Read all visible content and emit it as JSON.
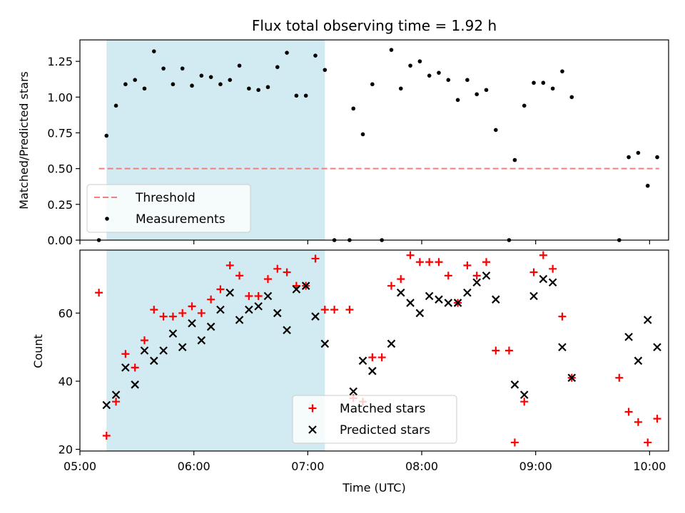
{
  "chart_data": [
    {
      "type": "scatter",
      "title": "Flux total observing time = 1.92 h",
      "xlabel": "",
      "ylabel": "Matched/Predicted stars",
      "xlim": [
        "05:00",
        "10:10"
      ],
      "ylim": [
        0,
        1.4
      ],
      "yticks": [
        "0.00",
        "0.25",
        "0.50",
        "0.75",
        "1.00",
        "1.25"
      ],
      "shaded_span": {
        "start": "05:14",
        "end": "07:09",
        "color": "#add8e6"
      },
      "threshold": {
        "name": "Threshold",
        "value": 0.5,
        "x_start": "05:10",
        "x_end": "10:05",
        "color": "#f08080",
        "style": "dashed"
      },
      "legend": {
        "placement": "lower-left",
        "entries": [
          "Threshold",
          "Measurements"
        ]
      },
      "series": [
        {
          "name": "Measurements",
          "color": "#000000",
          "marker": "dot",
          "points": [
            [
              "05:10",
              0.0
            ],
            [
              "05:14",
              0.73
            ],
            [
              "05:19",
              0.94
            ],
            [
              "05:24",
              1.09
            ],
            [
              "05:29",
              1.12
            ],
            [
              "05:34",
              1.06
            ],
            [
              "05:39",
              1.32
            ],
            [
              "05:44",
              1.2
            ],
            [
              "05:49",
              1.09
            ],
            [
              "05:54",
              1.2
            ],
            [
              "05:59",
              1.08
            ],
            [
              "06:04",
              1.15
            ],
            [
              "06:09",
              1.14
            ],
            [
              "06:14",
              1.09
            ],
            [
              "06:19",
              1.12
            ],
            [
              "06:24",
              1.22
            ],
            [
              "06:29",
              1.06
            ],
            [
              "06:34",
              1.05
            ],
            [
              "06:39",
              1.07
            ],
            [
              "06:44",
              1.21
            ],
            [
              "06:49",
              1.31
            ],
            [
              "06:54",
              1.01
            ],
            [
              "06:59",
              1.01
            ],
            [
              "07:04",
              1.29
            ],
            [
              "07:09",
              1.19
            ],
            [
              "07:14",
              0.0
            ],
            [
              "07:22",
              0.0
            ],
            [
              "07:24",
              0.92
            ],
            [
              "07:29",
              0.74
            ],
            [
              "07:34",
              1.09
            ],
            [
              "07:39",
              0.0
            ],
            [
              "07:44",
              1.33
            ],
            [
              "07:49",
              1.06
            ],
            [
              "07:54",
              1.22
            ],
            [
              "07:59",
              1.25
            ],
            [
              "08:04",
              1.15
            ],
            [
              "08:09",
              1.17
            ],
            [
              "08:14",
              1.12
            ],
            [
              "08:19",
              0.98
            ],
            [
              "08:24",
              1.12
            ],
            [
              "08:29",
              1.02
            ],
            [
              "08:34",
              1.05
            ],
            [
              "08:39",
              0.77
            ],
            [
              "08:46",
              0.0
            ],
            [
              "08:49",
              0.56
            ],
            [
              "08:54",
              0.94
            ],
            [
              "08:59",
              1.1
            ],
            [
              "09:04",
              1.1
            ],
            [
              "09:09",
              1.06
            ],
            [
              "09:14",
              1.18
            ],
            [
              "09:19",
              1.0
            ],
            [
              "09:44",
              0.0
            ],
            [
              "09:49",
              0.58
            ],
            [
              "09:54",
              0.61
            ],
            [
              "09:59",
              0.38
            ],
            [
              "10:04",
              0.58
            ]
          ]
        }
      ]
    },
    {
      "type": "scatter",
      "title": "",
      "xlabel": "Time (UTC)",
      "ylabel": "Count",
      "xlim": [
        "05:00",
        "10:10"
      ],
      "ylim": [
        19.5,
        78.5
      ],
      "yticks": [
        "20",
        "40",
        "60"
      ],
      "xticks": [
        "05:00",
        "06:00",
        "07:00",
        "08:00",
        "09:00",
        "10:00"
      ],
      "shaded_span": {
        "start": "05:14",
        "end": "07:09",
        "color": "#add8e6"
      },
      "legend": {
        "placement": "lower-center",
        "entries": [
          "Matched stars",
          "Predicted stars"
        ]
      },
      "series": [
        {
          "name": "Matched stars",
          "color": "#ff0000",
          "marker": "plus",
          "points": [
            [
              "05:10",
              66
            ],
            [
              "05:14",
              24
            ],
            [
              "05:19",
              34
            ],
            [
              "05:24",
              48
            ],
            [
              "05:29",
              44
            ],
            [
              "05:34",
              52
            ],
            [
              "05:39",
              61
            ],
            [
              "05:44",
              59
            ],
            [
              "05:49",
              59
            ],
            [
              "05:54",
              60
            ],
            [
              "05:59",
              62
            ],
            [
              "06:04",
              60
            ],
            [
              "06:09",
              64
            ],
            [
              "06:14",
              67
            ],
            [
              "06:19",
              74
            ],
            [
              "06:24",
              71
            ],
            [
              "06:29",
              65
            ],
            [
              "06:34",
              65
            ],
            [
              "06:39",
              70
            ],
            [
              "06:44",
              73
            ],
            [
              "06:49",
              72
            ],
            [
              "06:54",
              68
            ],
            [
              "06:59",
              68
            ],
            [
              "07:04",
              76
            ],
            [
              "07:09",
              61
            ],
            [
              "07:14",
              61
            ],
            [
              "07:22",
              61
            ],
            [
              "07:24",
              35
            ],
            [
              "07:29",
              34
            ],
            [
              "07:34",
              47
            ],
            [
              "07:39",
              47
            ],
            [
              "07:44",
              68
            ],
            [
              "07:49",
              70
            ],
            [
              "07:54",
              77
            ],
            [
              "07:59",
              75
            ],
            [
              "08:04",
              75
            ],
            [
              "08:09",
              75
            ],
            [
              "08:14",
              71
            ],
            [
              "08:19",
              63
            ],
            [
              "08:24",
              74
            ],
            [
              "08:29",
              71
            ],
            [
              "08:34",
              75
            ],
            [
              "08:39",
              49
            ],
            [
              "08:46",
              49
            ],
            [
              "08:49",
              22
            ],
            [
              "08:54",
              34
            ],
            [
              "08:59",
              72
            ],
            [
              "09:04",
              77
            ],
            [
              "09:09",
              73
            ],
            [
              "09:14",
              59
            ],
            [
              "09:19",
              41
            ],
            [
              "09:44",
              41
            ],
            [
              "09:49",
              31
            ],
            [
              "09:54",
              28
            ],
            [
              "09:59",
              22
            ],
            [
              "10:04",
              29
            ]
          ]
        },
        {
          "name": "Predicted stars",
          "color": "#000000",
          "marker": "x",
          "points": [
            [
              "05:14",
              33
            ],
            [
              "05:19",
              36
            ],
            [
              "05:24",
              44
            ],
            [
              "05:29",
              39
            ],
            [
              "05:34",
              49
            ],
            [
              "05:39",
              46
            ],
            [
              "05:44",
              49
            ],
            [
              "05:49",
              54
            ],
            [
              "05:54",
              50
            ],
            [
              "05:59",
              57
            ],
            [
              "06:04",
              52
            ],
            [
              "06:09",
              56
            ],
            [
              "06:14",
              61
            ],
            [
              "06:19",
              66
            ],
            [
              "06:24",
              58
            ],
            [
              "06:29",
              61
            ],
            [
              "06:34",
              62
            ],
            [
              "06:39",
              65
            ],
            [
              "06:44",
              60
            ],
            [
              "06:49",
              55
            ],
            [
              "06:54",
              67
            ],
            [
              "06:59",
              68
            ],
            [
              "07:04",
              59
            ],
            [
              "07:09",
              51
            ],
            [
              "07:24",
              37
            ],
            [
              "07:29",
              46
            ],
            [
              "07:34",
              43
            ],
            [
              "07:44",
              51
            ],
            [
              "07:49",
              66
            ],
            [
              "07:54",
              63
            ],
            [
              "07:59",
              60
            ],
            [
              "08:04",
              65
            ],
            [
              "08:09",
              64
            ],
            [
              "08:14",
              63
            ],
            [
              "08:19",
              63
            ],
            [
              "08:24",
              66
            ],
            [
              "08:29",
              69
            ],
            [
              "08:34",
              71
            ],
            [
              "08:39",
              64
            ],
            [
              "08:49",
              39
            ],
            [
              "08:54",
              36
            ],
            [
              "08:59",
              65
            ],
            [
              "09:04",
              70
            ],
            [
              "09:09",
              69
            ],
            [
              "09:14",
              50
            ],
            [
              "09:19",
              41
            ],
            [
              "09:49",
              53
            ],
            [
              "09:54",
              46
            ],
            [
              "09:59",
              58
            ],
            [
              "10:04",
              50
            ]
          ]
        }
      ]
    }
  ]
}
